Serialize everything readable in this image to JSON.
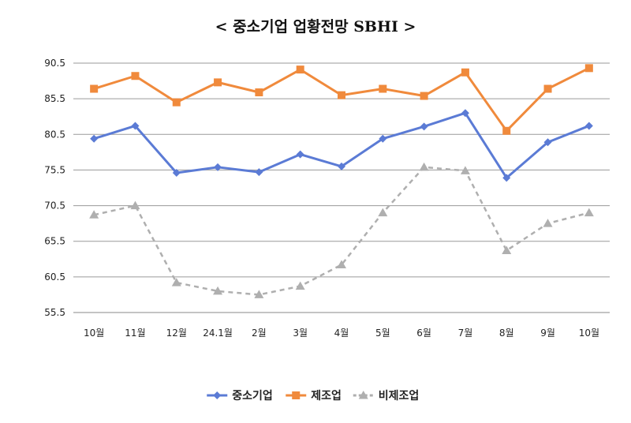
{
  "chart_data": {
    "type": "line",
    "title": "< 중소기업 업황전망 SBHI >",
    "categories": [
      "10월",
      "11월",
      "12월",
      "24.1월",
      "2월",
      "3월",
      "4월",
      "5월",
      "6월",
      "7월",
      "8월",
      "9월",
      "10월"
    ],
    "yticks": [
      "90.5",
      "85.5",
      "80.5",
      "75.5",
      "70.5",
      "65.5",
      "60.5",
      "55.5"
    ],
    "ylim": [
      55.5,
      90.5
    ],
    "grid": true,
    "legend_position": "bottom",
    "series": [
      {
        "name": "중소기업",
        "color": "#5B7BD5",
        "marker": "diamond",
        "dash": "",
        "values": [
          79.9,
          81.7,
          75.1,
          75.9,
          75.2,
          77.7,
          76.0,
          79.9,
          81.6,
          83.5,
          74.4,
          79.4,
          81.7
        ]
      },
      {
        "name": "제조업",
        "color": "#F08A3C",
        "marker": "square",
        "dash": "",
        "values": [
          86.9,
          88.7,
          85.0,
          87.8,
          86.4,
          89.6,
          86.0,
          86.9,
          85.9,
          89.2,
          81.0,
          86.9,
          89.8
        ]
      },
      {
        "name": "비제조업",
        "color": "#AFAFAF",
        "marker": "triangle",
        "dash": "6,5",
        "values": [
          69.2,
          70.5,
          59.7,
          58.5,
          58.0,
          59.2,
          62.2,
          69.5,
          75.9,
          75.4,
          64.2,
          68.0,
          69.5
        ]
      }
    ]
  }
}
